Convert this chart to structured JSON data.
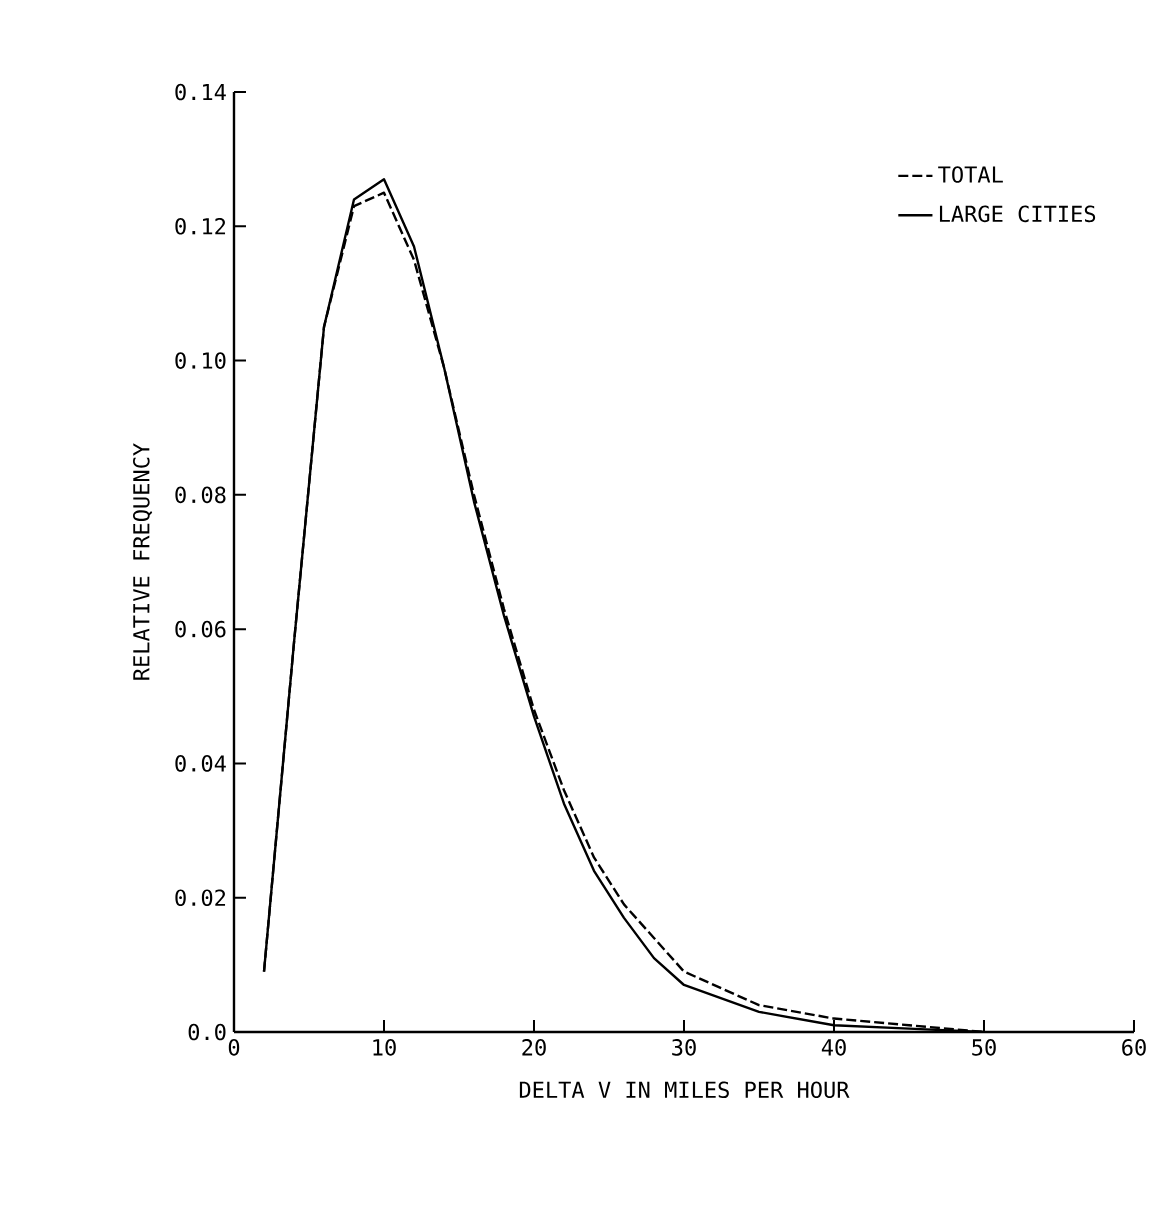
{
  "chart_data": {
    "type": "line",
    "xlabel": "DELTA V IN MILES PER HOUR",
    "ylabel": "RELATIVE FREQUENCY",
    "xlim": [
      0,
      60
    ],
    "xticks": [
      0,
      10,
      20,
      30,
      40,
      50,
      60
    ],
    "ylim": [
      0,
      0.14
    ],
    "yticks": [
      {
        "value": 0,
        "label": "0.0"
      },
      0.02,
      0.04,
      0.06,
      0.08,
      {
        "value": 0.1,
        "label": "0.10"
      },
      0.12,
      0.14
    ],
    "x": [
      2,
      4,
      6,
      8,
      10,
      12,
      14,
      16,
      18,
      20,
      22,
      24,
      26,
      28,
      30,
      35,
      40,
      45,
      50
    ],
    "legend": "top right",
    "grid": false,
    "marker": "none",
    "series": [
      {
        "name": "TOTAL",
        "color": "#000000",
        "line_style": "dashed",
        "values": [
          0.009,
          0.058,
          0.105,
          0.123,
          0.125,
          0.115,
          0.099,
          0.08,
          0.063,
          0.048,
          0.036,
          0.026,
          0.019,
          0.014,
          0.009,
          0.004,
          0.002,
          0.001,
          0.0
        ]
      },
      {
        "name": "LARGE CITIES",
        "color": "#000000",
        "line_style": "solid",
        "values": [
          0.009,
          0.058,
          0.105,
          0.124,
          0.127,
          0.117,
          0.099,
          0.079,
          0.062,
          0.047,
          0.034,
          0.024,
          0.017,
          0.011,
          0.007,
          0.003,
          0.001,
          0.0005,
          0.0
        ]
      }
    ]
  }
}
